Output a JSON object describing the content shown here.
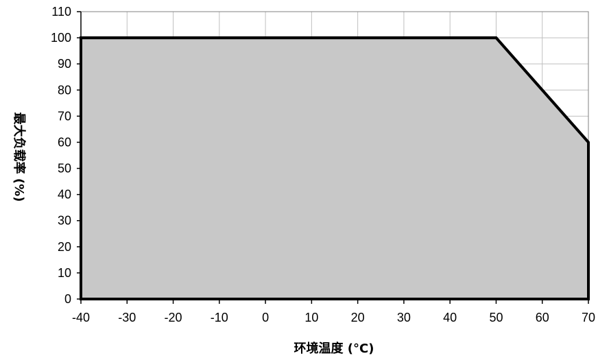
{
  "chart_data": {
    "type": "area",
    "title": "",
    "xlabel": "环境温度 (°C)",
    "ylabel": "最大负载率 (%)",
    "x": [
      -40,
      50,
      70
    ],
    "series": [
      {
        "values": [
          100,
          100,
          60
        ]
      }
    ],
    "xlim": [
      -40,
      70
    ],
    "ylim": [
      0,
      110
    ],
    "xticks": [
      -40,
      -30,
      -20,
      -10,
      0,
      10,
      20,
      30,
      40,
      50,
      60,
      70
    ],
    "yticks": [
      0,
      10,
      20,
      30,
      40,
      50,
      60,
      70,
      80,
      90,
      100,
      110
    ],
    "grid": true,
    "colors": {
      "fill": "#c8c8c8",
      "line": "#000000",
      "grid": "#bfbfbf"
    }
  }
}
